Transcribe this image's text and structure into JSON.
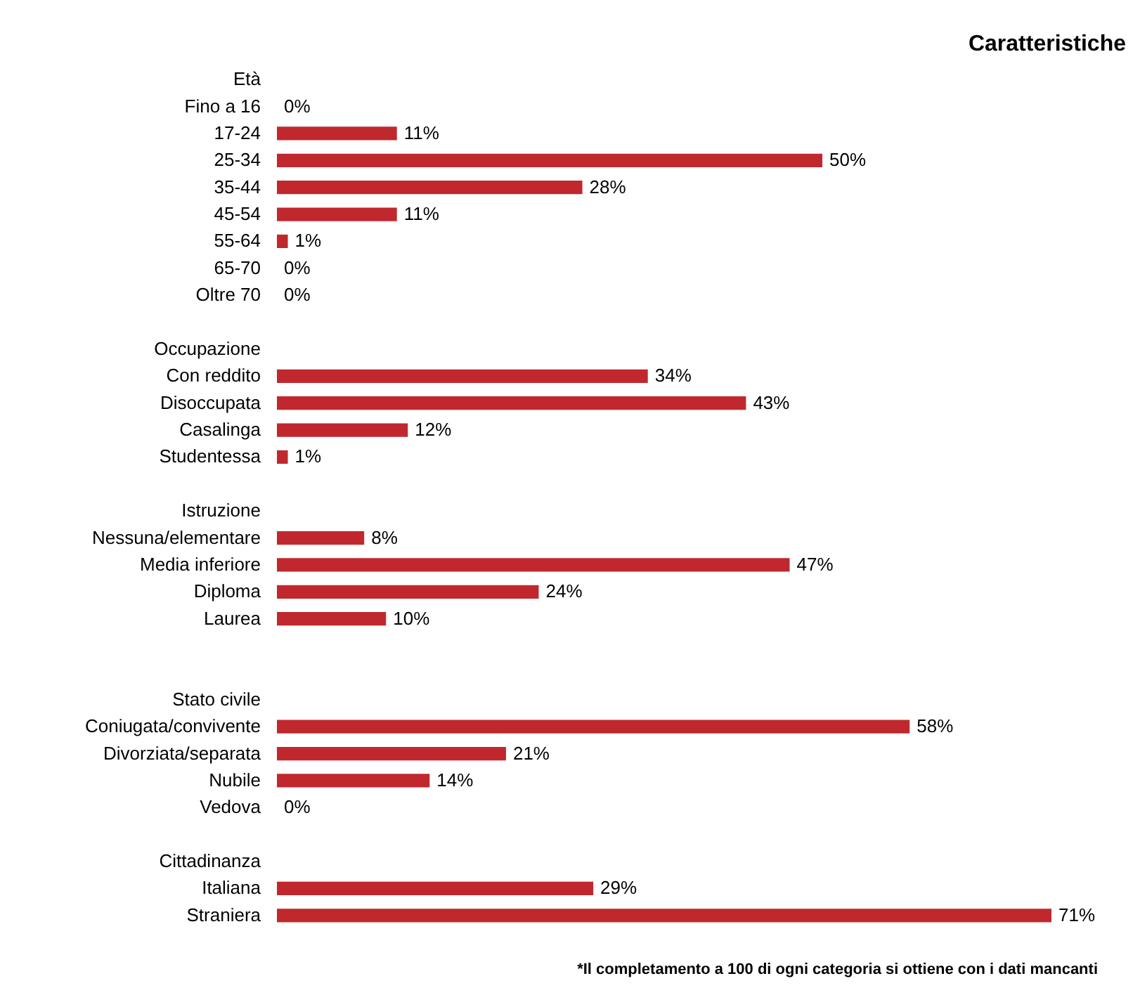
{
  "chart_data": {
    "type": "bar",
    "orientation": "horizontal",
    "title": "Caratteristiche",
    "categories": [
      "Età",
      "Fino a 16",
      "17-24",
      "25-34",
      "35-44",
      "45-54",
      "55-64",
      "65-70",
      "Oltre 70",
      null,
      "Occupazione",
      "Con reddito",
      "Disoccupata",
      "Casalinga",
      "Studentessa",
      null,
      "Istruzione",
      "Nessuna/elementare",
      "Media inferiore",
      "Diploma",
      "Laurea",
      null,
      null,
      "Stato civile",
      "Coniugata/convivente",
      "Divorziata/separata",
      "Nubile",
      "Vedova",
      null,
      "Cittadinanza",
      "Italiana",
      "Straniera"
    ],
    "values": [
      null,
      0,
      11,
      50,
      28,
      11,
      1,
      0,
      0,
      null,
      null,
      34,
      43,
      12,
      1,
      null,
      null,
      8,
      47,
      24,
      10,
      null,
      null,
      null,
      58,
      21,
      14,
      0,
      null,
      null,
      29,
      71
    ],
    "value_labels": [
      null,
      "0%",
      "11%",
      "50%",
      "28%",
      "11%",
      "1%",
      "0%",
      "0%",
      null,
      null,
      "34%",
      "43%",
      "12%",
      "1%",
      null,
      null,
      "8%",
      "47%",
      "24%",
      "10%",
      null,
      null,
      null,
      "58%",
      "21%",
      "14%",
      "0%",
      null,
      null,
      "29%",
      "71%"
    ],
    "color": "#c0282d",
    "annotations": [
      "*Il completamento a 100 di ogni categoria si ottiene con i dati mancanti"
    ]
  }
}
